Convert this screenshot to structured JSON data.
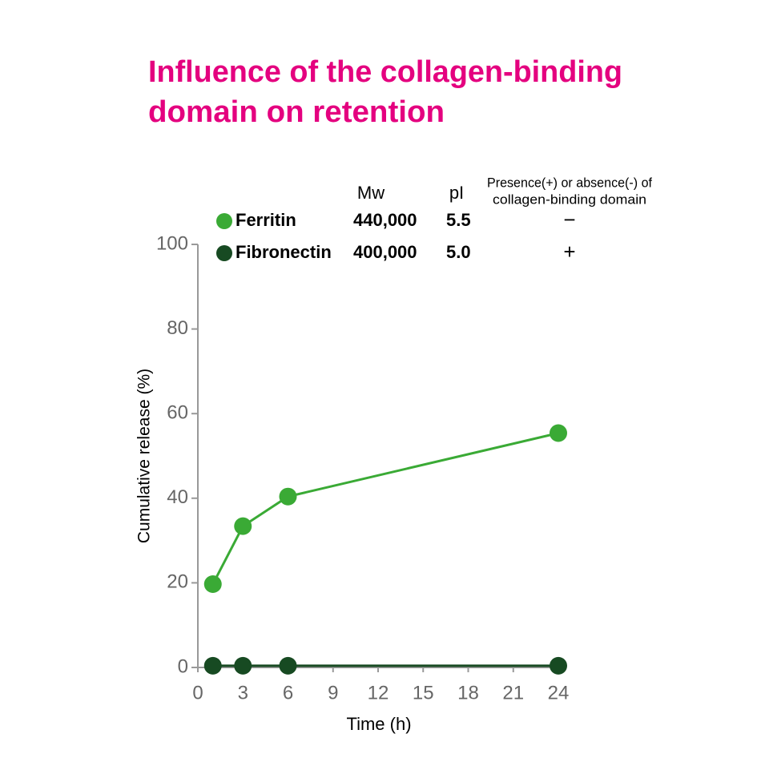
{
  "chart_data": {
    "type": "line",
    "title": [
      "Influence of the collagen-binding",
      "domain on retention"
    ],
    "x_label": "Time (h)",
    "y_label": "Cumulative release (%)",
    "xlim": [
      0,
      24
    ],
    "xticks": [
      0,
      3,
      6,
      9,
      12,
      15,
      18,
      21,
      24
    ],
    "ylim": [
      0,
      100
    ],
    "yticks": [
      0,
      20,
      40,
      60,
      80,
      100
    ],
    "x": [
      1,
      3,
      6,
      24
    ],
    "table_headers": {
      "mw": "Mw",
      "pi": "pI",
      "domain": [
        "Presence(+) or absence(-) of",
        "collagen-binding domain"
      ]
    },
    "series": [
      {
        "name": "Ferritin",
        "color": "#3aaa35",
        "values": [
          19.7,
          33.4,
          40.4,
          55.4
        ],
        "mw": "440,000",
        "pi": "5.5",
        "domain": "−"
      },
      {
        "name": "Fibronectin",
        "color": "#174a22",
        "values": [
          0.4,
          0.4,
          0.4,
          0.4
        ],
        "mw": "400,000",
        "pi": "5.0",
        "domain": "+"
      }
    ]
  }
}
